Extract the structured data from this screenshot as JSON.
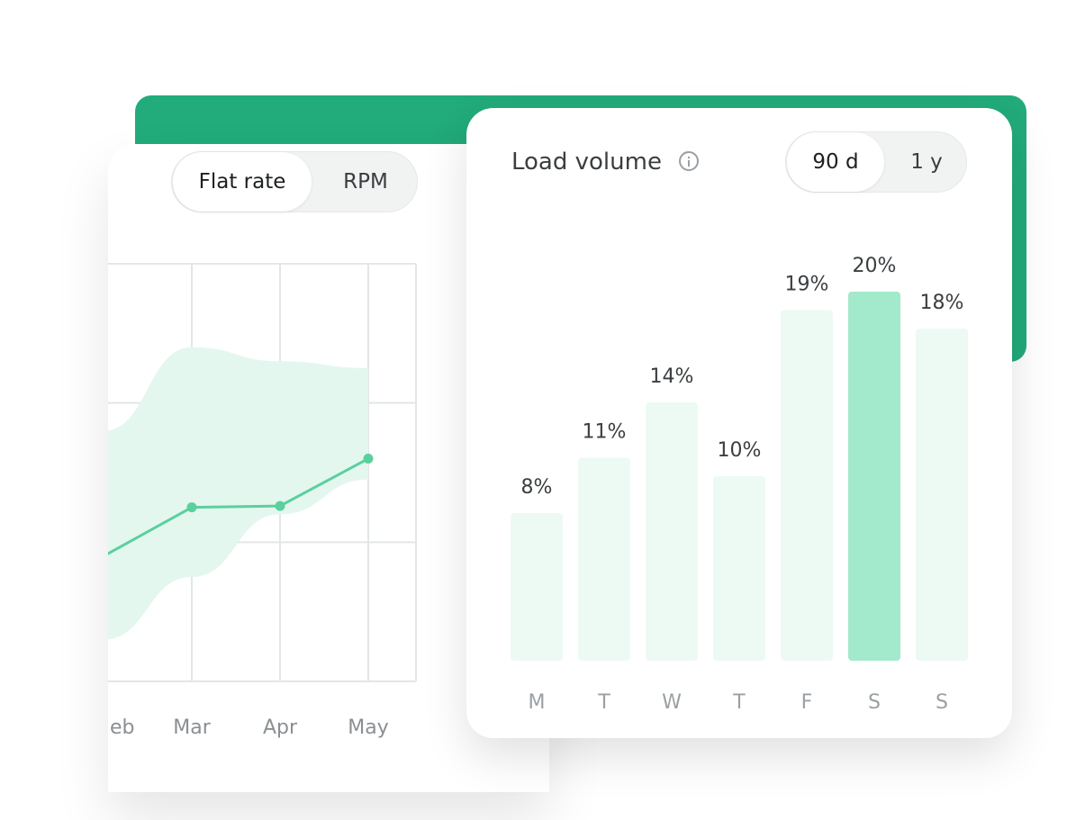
{
  "rate_card": {
    "toggle": {
      "active_label": "Flat rate",
      "inactive_label": "RPM"
    }
  },
  "volume_card": {
    "title": "Load volume",
    "toggle": {
      "active_label": "90 d",
      "inactive_label": "1 y"
    }
  },
  "colors": {
    "backdrop": "#22ab7b",
    "bar": "#edfaf4",
    "bar_highlight": "#a3e9cb",
    "line": "#5ad09f",
    "band": "#e4f7ef",
    "grid": "#e3e6e6"
  },
  "chart_data": [
    {
      "type": "line",
      "title": "",
      "xlabel": "",
      "ylabel": "",
      "categories": [
        "Feb",
        "Mar",
        "Apr",
        "May"
      ],
      "visible_tick_labels": [
        "eb",
        "Mar",
        "Apr",
        "May"
      ],
      "y_axis": "no tick labels shown",
      "ylim": [
        0,
        3
      ],
      "grid": true,
      "series": [
        {
          "role": "line",
          "values": [
            0.9,
            1.25,
            1.26,
            1.6
          ]
        },
        {
          "role": "band",
          "lower": [
            0.3,
            0.75,
            1.2,
            1.45
          ],
          "upper": [
            1.8,
            2.4,
            2.3,
            2.25
          ]
        }
      ]
    },
    {
      "type": "bar",
      "title": "Load volume",
      "categories": [
        "M",
        "T",
        "W",
        "T",
        "F",
        "S",
        "S"
      ],
      "values": [
        8,
        11,
        14,
        10,
        19,
        20,
        18
      ],
      "value_labels": [
        "8%",
        "11%",
        "14%",
        "10%",
        "19%",
        "20%",
        "18%"
      ],
      "highlight_index": 5,
      "ylim": [
        0,
        20
      ],
      "grid": false
    }
  ]
}
